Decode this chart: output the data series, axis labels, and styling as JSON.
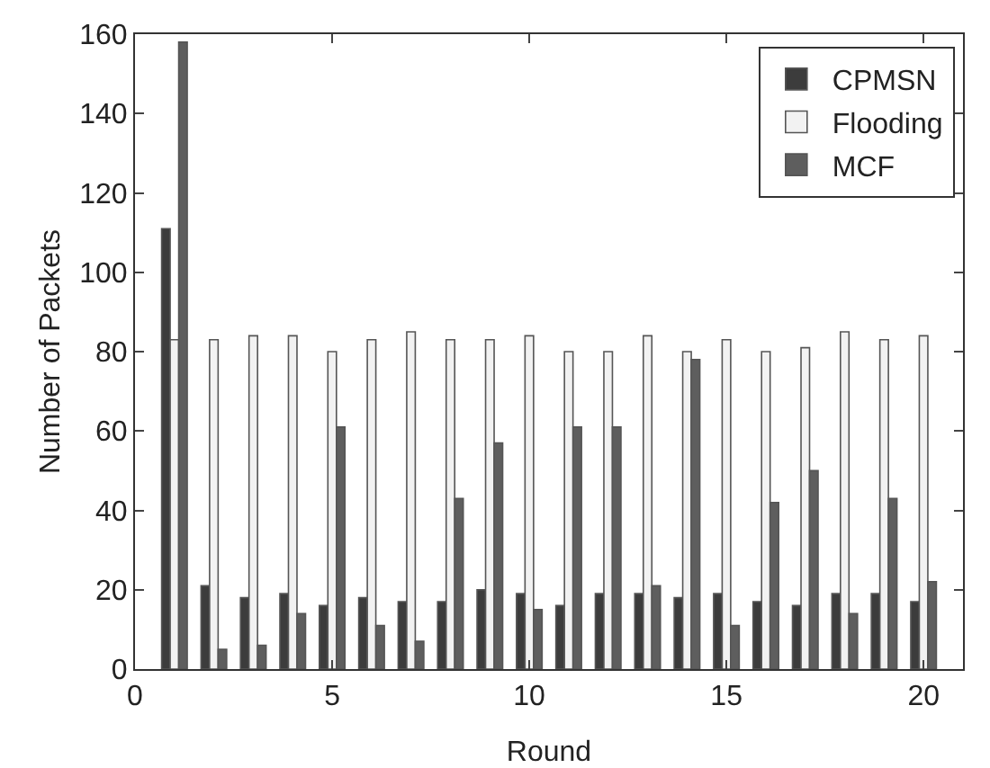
{
  "chart_data": {
    "type": "bar",
    "xlabel": "Round",
    "ylabel": "Number of Packets",
    "x": [
      1,
      2,
      3,
      4,
      5,
      6,
      7,
      8,
      9,
      10,
      11,
      12,
      13,
      14,
      15,
      16,
      17,
      18,
      19,
      20
    ],
    "series": [
      {
        "name": "CPMSN",
        "color": "#3c3c3c",
        "values": [
          111,
          21,
          18,
          19,
          16,
          18,
          17,
          17,
          20,
          19,
          16,
          19,
          19,
          18,
          19,
          17,
          16,
          19,
          19,
          17
        ]
      },
      {
        "name": "Flooding",
        "color": "#f2f2f2",
        "values": [
          83,
          83,
          84,
          84,
          80,
          83,
          85,
          83,
          83,
          84,
          80,
          80,
          84,
          80,
          83,
          80,
          81,
          85,
          83,
          84
        ]
      },
      {
        "name": "MCF",
        "color": "#5e5e5e",
        "values": [
          158,
          5,
          6,
          14,
          61,
          11,
          7,
          43,
          57,
          15,
          61,
          61,
          21,
          78,
          11,
          42,
          50,
          14,
          43,
          22
        ]
      }
    ],
    "xlim": [
      0,
      21
    ],
    "xticks": [
      0,
      5,
      10,
      15,
      20
    ],
    "ylim": [
      0,
      160
    ],
    "yticks": [
      0,
      20,
      40,
      60,
      80,
      100,
      120,
      140,
      160
    ],
    "grid": false,
    "legend": "top right"
  }
}
